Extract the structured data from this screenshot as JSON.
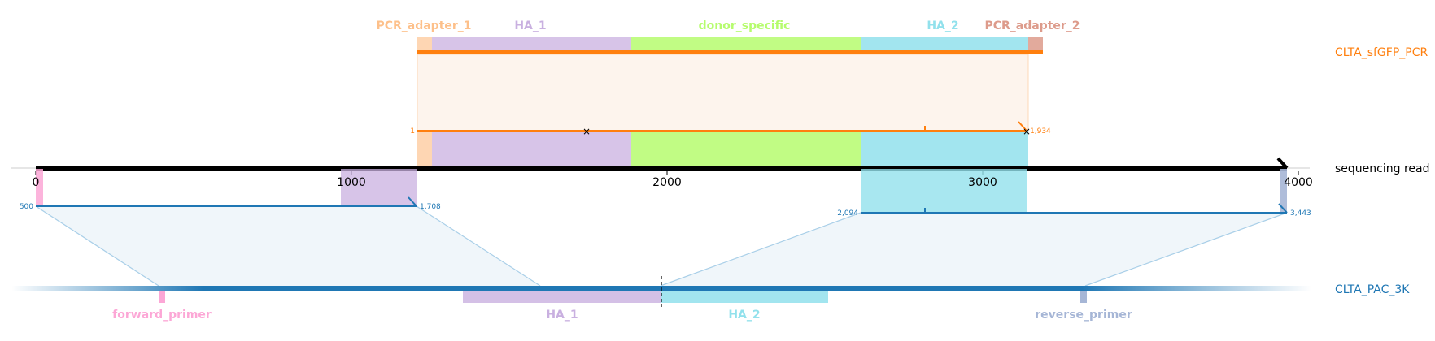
{
  "colors": {
    "pcr_adapter_1": "#fdc08a",
    "ha_1": "#c9b0e0",
    "donor_specific": "#b6fc6e",
    "ha_2": "#92e1ec",
    "pcr_adapter_2": "#dd9b8b",
    "forward_primer": "#fca7d6",
    "reverse_primer": "#a6b6d6",
    "orange_track": "#ff7f0e",
    "blue_track": "#1f77b4"
  },
  "tracks": {
    "top": "CLTA_sfGFP_PCR",
    "middle": "sequencing read",
    "bottom": "CLTA_PAC_3K"
  },
  "features_top": [
    {
      "key": "pcr_adapter_1",
      "label": "PCR_adapter_1"
    },
    {
      "key": "ha_1",
      "label": "HA_1"
    },
    {
      "key": "donor_specific",
      "label": "donor_specific"
    },
    {
      "key": "ha_2",
      "label": "HA_2"
    },
    {
      "key": "pcr_adapter_2",
      "label": "PCR_adapter_2"
    }
  ],
  "features_bottom": [
    {
      "key": "forward_primer",
      "label": "forward_primer"
    },
    {
      "key": "ha_1",
      "label": "HA_1"
    },
    {
      "key": "ha_2",
      "label": "HA_2"
    },
    {
      "key": "reverse_primer",
      "label": "reverse_primer"
    }
  ],
  "axis": {
    "ticks": [
      0,
      1000,
      2000,
      3000,
      4000
    ],
    "tick_labels": [
      "0",
      "1000",
      "2000",
      "3000",
      "4000"
    ]
  },
  "coords": {
    "top_start": "1",
    "top_end": "1,934",
    "bottom_left_start": "500",
    "bottom_left_end": "1,708",
    "bottom_right_start": "2,094",
    "bottom_right_end": "3,443"
  }
}
